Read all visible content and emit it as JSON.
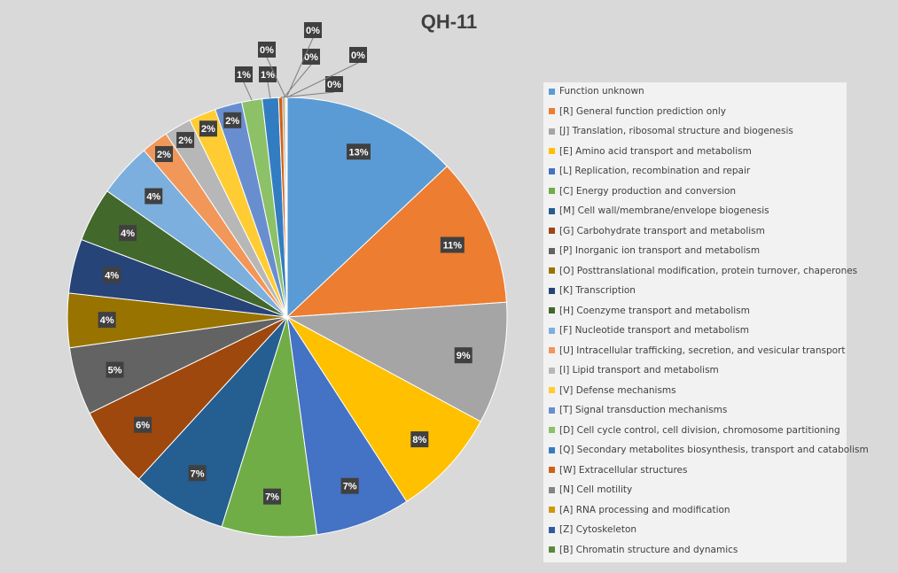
{
  "chart_data": {
    "type": "pie",
    "title": "QH-11",
    "legend_position": "right",
    "slices": [
      {
        "label": "Function unknown",
        "value": 13,
        "color": "#5b9bd5"
      },
      {
        "label": "[R] General function prediction only",
        "value": 11,
        "color": "#ed7d31"
      },
      {
        "label": "[J] Translation, ribosomal structure and biogenesis",
        "value": 9,
        "color": "#a5a5a5"
      },
      {
        "label": "[E] Amino acid transport and metabolism",
        "value": 8,
        "color": "#ffc000"
      },
      {
        "label": "[L] Replication, recombination and repair",
        "value": 7,
        "color": "#4472c4"
      },
      {
        "label": "[C] Energy production and conversion",
        "value": 7,
        "color": "#70ad47"
      },
      {
        "label": "[M] Cell wall/membrane/envelope biogenesis",
        "value": 7,
        "color": "#255e91"
      },
      {
        "label": "[G] Carbohydrate transport and metabolism",
        "value": 6,
        "color": "#9e480e"
      },
      {
        "label": "[P] Inorganic ion transport and metabolism",
        "value": 5,
        "color": "#636363"
      },
      {
        "label": "[O] Posttranslational modification, protein turnover, chaperones",
        "value": 4,
        "color": "#997300"
      },
      {
        "label": "[K] Transcription",
        "value": 4,
        "color": "#264478"
      },
      {
        "label": "[H] Coenzyme transport and metabolism",
        "value": 4,
        "color": "#43682b"
      },
      {
        "label": "[F] Nucleotide transport and metabolism",
        "value": 4,
        "color": "#7cafdd"
      },
      {
        "label": "[U] Intracellular trafficking, secretion, and vesicular transport",
        "value": 2,
        "color": "#f1975a"
      },
      {
        "label": "[I] Lipid transport and metabolism",
        "value": 2,
        "color": "#b7b7b7"
      },
      {
        "label": "[V] Defense mechanisms",
        "value": 2,
        "color": "#ffcd33"
      },
      {
        "label": "[T] Signal transduction mechanisms",
        "value": 2,
        "color": "#698ed0"
      },
      {
        "label": "[D] Cell cycle control, cell division, chromosome partitioning",
        "value": 1.5,
        "color": "#8cc168"
      },
      {
        "label": "[Q] Secondary metabolites biosynthesis, transport and catabolism",
        "value": 1.2,
        "color": "#327dc2"
      },
      {
        "label": "[W] Extracellular structures",
        "value": 0.3,
        "color": "#d26012"
      },
      {
        "label": "[N] Cell motility",
        "value": 0.15,
        "color": "#848484"
      },
      {
        "label": "[A] RNA processing and modification",
        "value": 0.1,
        "color": "#cc9a00"
      },
      {
        "label": "[Z] Cytoskeleton",
        "value": 0.05,
        "color": "#335aa1"
      },
      {
        "label": "[B] Chromatin structure and dynamics",
        "value": 0.03,
        "color": "#5a8a39"
      }
    ],
    "data_labels": [
      "13%",
      "11%",
      "9%",
      "8%",
      "7%",
      "7%",
      "7%",
      "6%",
      "5%",
      "4%",
      "4%",
      "4%",
      "4%",
      "2%",
      "2%",
      "2%",
      "2%",
      "1%",
      "1%",
      "0%",
      "0%",
      "0%",
      "0%",
      "0%"
    ]
  }
}
